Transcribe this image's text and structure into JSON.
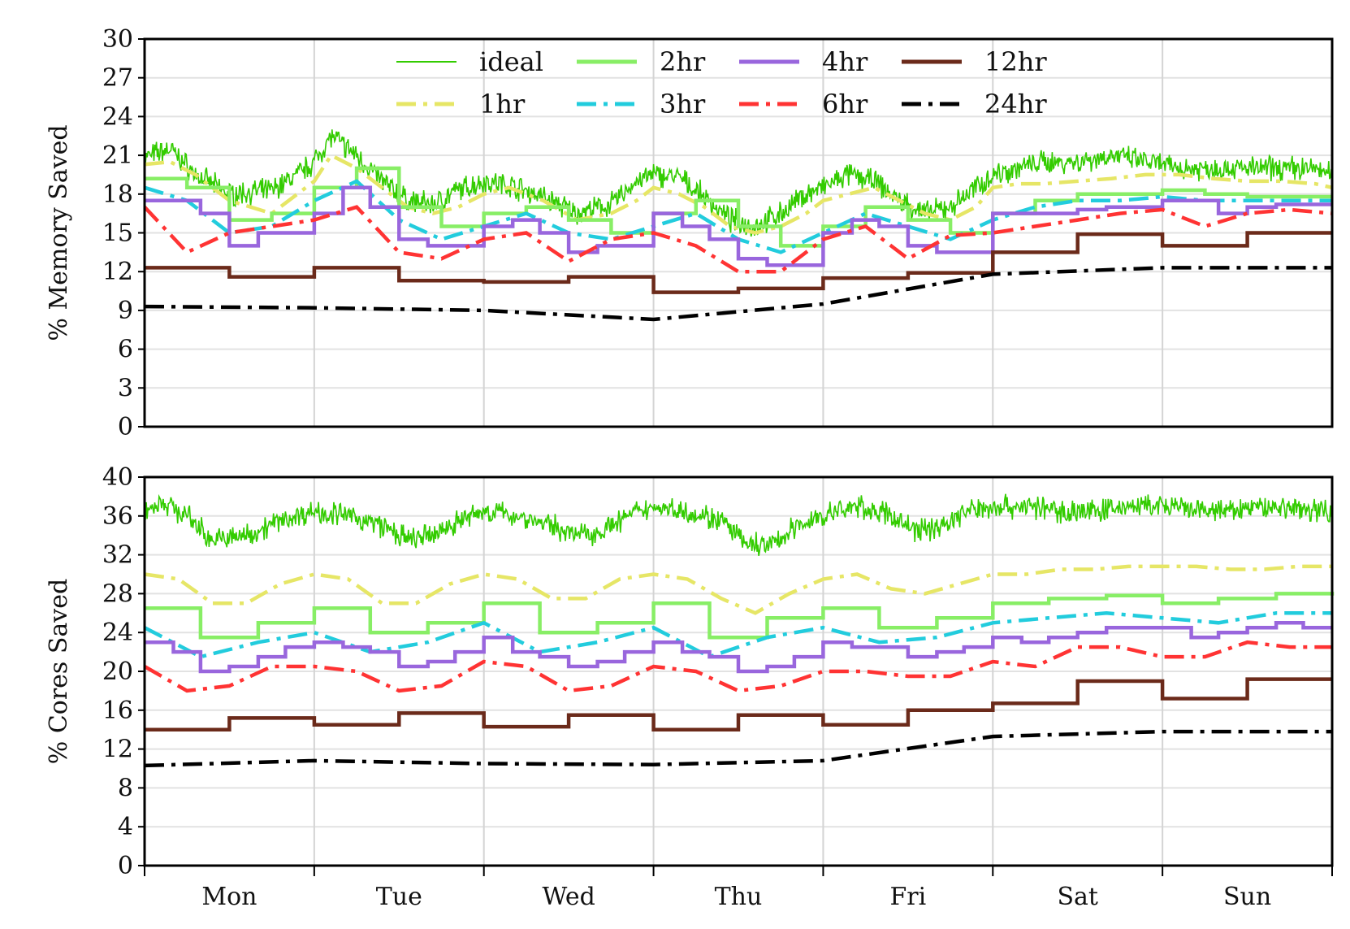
{
  "chart_data": [
    {
      "type": "line",
      "panel": "top",
      "ylabel": "% Memory Saved",
      "ylim": [
        0,
        30
      ],
      "yticks": [
        "0",
        "3",
        "6",
        "9",
        "12",
        "15",
        "18",
        "21",
        "24",
        "27",
        "30"
      ],
      "xlim": [
        0,
        7
      ],
      "grid": true,
      "legend": "top-center",
      "series": [
        {
          "name": "ideal",
          "kind": "noisy",
          "color": "#33cc00",
          "x": [
            0,
            0.08,
            0.15,
            0.3,
            0.5,
            0.75,
            0.9,
            1.0,
            1.1,
            1.25,
            1.4,
            1.55,
            1.7,
            1.85,
            2.0,
            2.15,
            2.35,
            2.55,
            2.75,
            2.9,
            3.0,
            3.15,
            3.3,
            3.45,
            3.6,
            3.75,
            3.9,
            4.0,
            4.15,
            4.3,
            4.45,
            4.6,
            4.75,
            4.9,
            5.0,
            5.15,
            5.3,
            5.5,
            5.7,
            5.9,
            6.1,
            6.3,
            6.5,
            6.7,
            6.9,
            7.0
          ],
          "y": [
            20.8,
            21.2,
            21.5,
            19.5,
            18.0,
            18.3,
            19.5,
            20.5,
            22.5,
            21.0,
            19.0,
            17.5,
            17.2,
            18.3,
            19.0,
            18.7,
            17.8,
            16.5,
            17.2,
            19.0,
            19.5,
            19.3,
            17.8,
            16.0,
            15.5,
            16.5,
            18.0,
            18.5,
            19.5,
            19.0,
            17.5,
            16.5,
            17.0,
            18.5,
            19.5,
            20.0,
            20.5,
            20.5,
            21.0,
            20.5,
            20.0,
            20.0,
            20.0,
            20.0,
            20.0,
            19.5
          ]
        },
        {
          "name": "1hr",
          "kind": "dashdot",
          "color": "#e6e666",
          "x": [
            0,
            0.15,
            0.3,
            0.5,
            0.75,
            0.9,
            1.0,
            1.1,
            1.25,
            1.4,
            1.55,
            1.7,
            1.85,
            2.0,
            2.15,
            2.35,
            2.55,
            2.75,
            2.9,
            3.0,
            3.15,
            3.3,
            3.45,
            3.6,
            3.75,
            3.9,
            4.0,
            4.15,
            4.3,
            4.45,
            4.6,
            4.75,
            4.9,
            5.0,
            5.15,
            5.3,
            5.5,
            5.7,
            5.9,
            6.1,
            6.3,
            6.5,
            6.7,
            6.9,
            7.0
          ],
          "y": [
            20.3,
            20.5,
            19.5,
            17.5,
            16.5,
            18.0,
            19.0,
            21.0,
            20.0,
            18.5,
            17.0,
            16.5,
            17.0,
            18.0,
            18.5,
            17.5,
            16.0,
            16.5,
            17.5,
            18.5,
            18.0,
            17.0,
            15.5,
            15.0,
            15.5,
            16.5,
            17.5,
            18.0,
            18.5,
            17.5,
            16.5,
            16.0,
            17.0,
            18.5,
            18.8,
            18.8,
            19.0,
            19.2,
            19.5,
            19.5,
            19.2,
            19.0,
            19.0,
            18.8,
            18.5
          ]
        },
        {
          "name": "2hr",
          "kind": "step",
          "color": "#88ee66",
          "x": [
            0,
            0.25,
            0.5,
            0.75,
            1.0,
            1.25,
            1.5,
            1.75,
            2.0,
            2.25,
            2.5,
            2.75,
            3.0,
            3.25,
            3.5,
            3.75,
            4.0,
            4.25,
            4.5,
            4.75,
            5.0,
            5.25,
            5.5,
            5.75,
            6.0,
            6.25,
            6.5,
            6.75,
            7.0
          ],
          "y": [
            19.2,
            18.5,
            16.0,
            16.5,
            18.5,
            20.0,
            17.0,
            15.5,
            16.5,
            17.0,
            16.0,
            15.0,
            16.5,
            17.5,
            15.5,
            14.0,
            15.5,
            17.0,
            16.0,
            15.0,
            16.5,
            17.5,
            18.0,
            18.0,
            18.3,
            18.0,
            17.8,
            17.8,
            17.8
          ]
        },
        {
          "name": "3hr",
          "kind": "dashdot",
          "color": "#22ccdd",
          "x": [
            0,
            0.25,
            0.5,
            0.75,
            1.0,
            1.25,
            1.5,
            1.75,
            2.0,
            2.25,
            2.5,
            2.75,
            3.0,
            3.25,
            3.5,
            3.75,
            4.0,
            4.25,
            4.5,
            4.75,
            5.0,
            5.25,
            5.5,
            5.75,
            6.0,
            6.25,
            6.5,
            6.75,
            7.0
          ],
          "y": [
            18.5,
            17.5,
            15.0,
            15.5,
            17.5,
            19.0,
            16.0,
            14.5,
            15.5,
            16.5,
            15.0,
            14.5,
            15.5,
            16.5,
            14.5,
            13.5,
            15.0,
            16.5,
            15.5,
            14.5,
            16.0,
            17.0,
            17.5,
            17.5,
            17.8,
            17.5,
            17.5,
            17.5,
            17.5
          ]
        },
        {
          "name": "4hr",
          "kind": "step",
          "color": "#9966dd",
          "x": [
            0,
            0.33,
            0.5,
            0.67,
            1.0,
            1.17,
            1.33,
            1.5,
            1.67,
            2.0,
            2.17,
            2.33,
            2.5,
            2.67,
            3.0,
            3.17,
            3.33,
            3.5,
            3.67,
            4.0,
            4.17,
            4.33,
            4.5,
            4.67,
            5.0,
            5.33,
            5.5,
            5.67,
            6.0,
            6.33,
            6.5,
            6.67,
            7.0
          ],
          "y": [
            17.5,
            16.5,
            14.0,
            15.0,
            16.5,
            18.5,
            17.0,
            14.5,
            14.0,
            15.5,
            16.0,
            15.0,
            13.5,
            14.0,
            16.5,
            15.5,
            14.5,
            13.0,
            12.5,
            15.0,
            16.0,
            15.5,
            14.0,
            13.5,
            16.5,
            16.5,
            16.8,
            17.0,
            17.5,
            16.5,
            17.0,
            17.2,
            17.2
          ]
        },
        {
          "name": "6hr",
          "kind": "dashdot",
          "color": "#ff3333",
          "x": [
            0,
            0.25,
            0.5,
            1.0,
            1.25,
            1.5,
            1.75,
            2.0,
            2.25,
            2.5,
            2.75,
            3.0,
            3.25,
            3.5,
            3.75,
            4.0,
            4.25,
            4.5,
            4.75,
            5.0,
            5.25,
            5.5,
            5.75,
            6.0,
            6.25,
            6.5,
            6.75,
            7.0
          ],
          "y": [
            17.0,
            13.5,
            15.0,
            16.0,
            17.0,
            13.5,
            13.0,
            14.5,
            15.0,
            12.8,
            14.5,
            15.0,
            14.0,
            12.0,
            12.0,
            14.5,
            15.5,
            13.0,
            14.8,
            15.0,
            15.5,
            16.0,
            16.5,
            16.8,
            15.5,
            16.5,
            16.8,
            16.5
          ]
        },
        {
          "name": "12hr",
          "kind": "step",
          "color": "#6b2a1a",
          "x": [
            0,
            0.5,
            1.0,
            1.5,
            2.0,
            2.5,
            3.0,
            3.5,
            4.0,
            4.5,
            5.0,
            5.5,
            6.0,
            6.5,
            7.0
          ],
          "y": [
            12.3,
            11.6,
            12.3,
            11.3,
            11.2,
            11.6,
            10.4,
            10.7,
            11.5,
            11.9,
            13.5,
            14.9,
            14.0,
            15.0,
            15.0
          ]
        },
        {
          "name": "24hr",
          "kind": "dashdot",
          "color": "#000000",
          "x": [
            0,
            1.0,
            2.0,
            3.0,
            4.0,
            5.0,
            6.0,
            7.0
          ],
          "y": [
            9.3,
            9.2,
            9.0,
            8.3,
            9.5,
            11.8,
            12.3,
            12.3
          ]
        }
      ]
    },
    {
      "type": "line",
      "panel": "bottom",
      "ylabel": "% Cores Saved",
      "ylim": [
        0,
        40
      ],
      "yticks": [
        "0",
        "4",
        "8",
        "12",
        "16",
        "20",
        "24",
        "28",
        "32",
        "36",
        "40"
      ],
      "xlim": [
        0,
        7
      ],
      "grid": true,
      "categories": [
        "Mon",
        "Tue",
        "Wed",
        "Thu",
        "Fri",
        "Sat",
        "Sun"
      ],
      "series": [
        {
          "name": "ideal",
          "kind": "noisy",
          "color": "#33cc00",
          "x": [
            0,
            0.1,
            0.25,
            0.4,
            0.6,
            0.8,
            1.0,
            1.2,
            1.4,
            1.55,
            1.7,
            1.85,
            2.0,
            2.2,
            2.4,
            2.55,
            2.7,
            2.85,
            3.0,
            3.2,
            3.4,
            3.55,
            3.7,
            3.85,
            4.0,
            4.2,
            4.4,
            4.55,
            4.7,
            4.85,
            5.0,
            5.2,
            5.4,
            5.6,
            5.8,
            6.0,
            6.2,
            6.4,
            6.6,
            6.8,
            7.0
          ],
          "y": [
            36.5,
            37.5,
            36.0,
            33.5,
            34.0,
            35.5,
            36.5,
            36.0,
            35.0,
            33.5,
            34.0,
            35.5,
            36.5,
            36.0,
            35.0,
            34.0,
            34.5,
            36.0,
            37.0,
            36.5,
            35.5,
            33.0,
            33.0,
            35.0,
            36.0,
            37.0,
            36.0,
            34.5,
            35.0,
            36.5,
            37.0,
            37.0,
            36.5,
            36.5,
            37.0,
            37.0,
            36.5,
            36.5,
            37.0,
            36.8,
            36.5
          ]
        },
        {
          "name": "1hr",
          "kind": "dashdot",
          "color": "#e6e666",
          "x": [
            0,
            0.2,
            0.4,
            0.6,
            0.8,
            1.0,
            1.2,
            1.4,
            1.6,
            1.8,
            2.0,
            2.2,
            2.4,
            2.6,
            2.8,
            3.0,
            3.2,
            3.4,
            3.6,
            3.8,
            4.0,
            4.2,
            4.4,
            4.6,
            4.8,
            5.0,
            5.2,
            5.4,
            5.6,
            5.8,
            6.0,
            6.2,
            6.4,
            6.6,
            6.8,
            7.0
          ],
          "y": [
            30.0,
            29.5,
            27.0,
            27.0,
            29.0,
            30.0,
            29.5,
            27.0,
            27.0,
            29.0,
            30.0,
            29.5,
            27.5,
            27.5,
            29.5,
            30.0,
            29.5,
            27.5,
            26.0,
            28.0,
            29.5,
            30.0,
            28.5,
            28.0,
            29.0,
            30.0,
            30.0,
            30.5,
            30.5,
            30.8,
            30.8,
            30.8,
            30.5,
            30.5,
            30.8,
            30.8
          ]
        },
        {
          "name": "2hr",
          "kind": "step",
          "color": "#88ee66",
          "x": [
            0,
            0.33,
            0.67,
            1.0,
            1.33,
            1.67,
            2.0,
            2.33,
            2.67,
            3.0,
            3.33,
            3.67,
            4.0,
            4.33,
            4.67,
            5.0,
            5.33,
            5.67,
            6.0,
            6.33,
            6.67,
            7.0
          ],
          "y": [
            26.5,
            23.5,
            25.0,
            26.5,
            24.0,
            25.0,
            27.0,
            24.0,
            25.0,
            27.0,
            23.5,
            25.5,
            26.5,
            24.5,
            25.5,
            27.0,
            27.5,
            27.8,
            27.0,
            27.5,
            28.0,
            27.8
          ]
        },
        {
          "name": "3hr",
          "kind": "dashdot",
          "color": "#22ccdd",
          "x": [
            0,
            0.33,
            0.67,
            1.0,
            1.33,
            1.67,
            2.0,
            2.33,
            2.67,
            3.0,
            3.33,
            3.67,
            4.0,
            4.33,
            4.67,
            5.0,
            5.33,
            5.67,
            6.0,
            6.33,
            6.67,
            7.0
          ],
          "y": [
            24.5,
            21.5,
            23.0,
            24.0,
            22.0,
            23.0,
            25.0,
            22.0,
            23.0,
            24.5,
            21.5,
            23.5,
            24.5,
            23.0,
            23.5,
            25.0,
            25.5,
            26.0,
            25.5,
            25.0,
            26.0,
            26.0
          ]
        },
        {
          "name": "4hr",
          "kind": "step",
          "color": "#9966dd",
          "x": [
            0,
            0.17,
            0.33,
            0.5,
            0.67,
            0.83,
            1.0,
            1.17,
            1.33,
            1.5,
            1.67,
            1.83,
            2.0,
            2.17,
            2.33,
            2.5,
            2.67,
            2.83,
            3.0,
            3.17,
            3.33,
            3.5,
            3.67,
            3.83,
            4.0,
            4.17,
            4.33,
            4.5,
            4.67,
            4.83,
            5.0,
            5.17,
            5.33,
            5.5,
            5.67,
            5.83,
            6.0,
            6.17,
            6.33,
            6.5,
            6.67,
            6.83,
            7.0
          ],
          "y": [
            23.0,
            22.0,
            20.0,
            20.5,
            21.5,
            22.5,
            23.0,
            22.5,
            22.0,
            20.5,
            21.0,
            22.0,
            23.5,
            22.0,
            21.5,
            20.5,
            21.0,
            22.0,
            23.0,
            22.0,
            21.5,
            20.0,
            20.5,
            21.5,
            23.0,
            22.5,
            22.5,
            21.5,
            22.0,
            22.5,
            23.5,
            23.0,
            23.5,
            24.0,
            24.5,
            24.5,
            24.5,
            23.5,
            24.0,
            24.5,
            25.0,
            24.5,
            24.5
          ]
        },
        {
          "name": "6hr",
          "kind": "dashdot",
          "color": "#ff3333",
          "x": [
            0,
            0.25,
            0.5,
            0.75,
            1.0,
            1.25,
            1.5,
            1.75,
            2.0,
            2.25,
            2.5,
            2.75,
            3.0,
            3.25,
            3.5,
            3.75,
            4.0,
            4.25,
            4.5,
            4.75,
            5.0,
            5.25,
            5.5,
            5.75,
            6.0,
            6.25,
            6.5,
            6.75,
            7.0
          ],
          "y": [
            20.5,
            18.0,
            18.5,
            20.5,
            20.5,
            20.0,
            18.0,
            18.5,
            21.0,
            20.5,
            18.0,
            18.5,
            20.5,
            20.0,
            18.0,
            18.5,
            20.0,
            20.0,
            19.5,
            19.5,
            21.0,
            20.5,
            22.5,
            22.5,
            21.5,
            21.5,
            23.0,
            22.5,
            22.5
          ]
        },
        {
          "name": "12hr",
          "kind": "step",
          "color": "#6b2a1a",
          "x": [
            0,
            0.5,
            1.0,
            1.5,
            2.0,
            2.5,
            3.0,
            3.5,
            4.0,
            4.5,
            5.0,
            5.5,
            6.0,
            6.5,
            7.0
          ],
          "y": [
            14.0,
            15.2,
            14.5,
            15.7,
            14.3,
            15.5,
            14.0,
            15.5,
            14.5,
            16.0,
            16.7,
            19.0,
            17.2,
            19.2,
            19.2
          ]
        },
        {
          "name": "24hr",
          "kind": "dashdot",
          "color": "#000000",
          "x": [
            0,
            1.0,
            2.0,
            3.0,
            4.0,
            5.0,
            6.0,
            7.0
          ],
          "y": [
            10.3,
            10.8,
            10.5,
            10.4,
            10.8,
            13.3,
            13.8,
            13.8
          ]
        }
      ]
    }
  ],
  "legend": {
    "entries": [
      "ideal",
      "2hr",
      "4hr",
      "12hr",
      "1hr",
      "3hr",
      "6hr",
      "24hr"
    ]
  }
}
